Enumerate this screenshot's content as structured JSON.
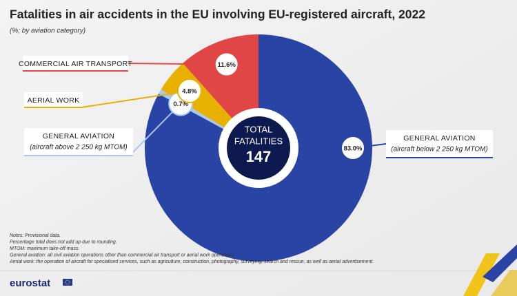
{
  "chart_data": {
    "type": "pie",
    "title": "Fatalities in air accidents in the EU involving EU-registered aircraft, 2022",
    "subtitle": "(%; by aviation category)",
    "categories": [
      "GENERAL AVIATION",
      "GENERAL AVIATION",
      "AERIAL WORK",
      "COMMERCIAL AIR TRANSPORT"
    ],
    "category_notes": [
      "(aircraft below 2 250 kg MTOM)",
      "(aircraft above 2 250 kg MTOM)",
      null,
      null
    ],
    "values": [
      83.0,
      0.7,
      4.8,
      11.6
    ],
    "value_labels": [
      "83.0%",
      "0.7%",
      "4.8%",
      "11.6%"
    ],
    "colors": [
      "#2a44a6",
      "#a9c9f2",
      "#e8b100",
      "#e04646"
    ],
    "center_label": [
      "TOTAL",
      "FATALITIES"
    ],
    "total": 147,
    "notes": [
      "Notes: Provisional data.",
      "Percentage total does not add up due to rounding.",
      "MTOM: maximum take-off mass.",
      "General aviation: all civil aviation operations other than commercial air transport or aerial work operations.",
      "Aerial work: the operation of aircraft for specialised services, such as agriculture, construction, photography, surveying, search and rescue, as well as aerial advertisement."
    ]
  },
  "footer": {
    "logo": "eurostat"
  }
}
